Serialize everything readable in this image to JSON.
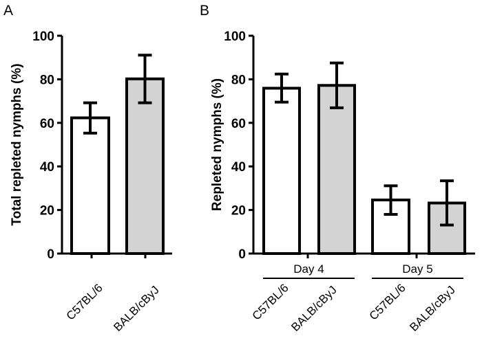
{
  "chart_data": [
    {
      "type": "bar",
      "panel_label": "A",
      "ylabel": "Total repleted nymphs (%)",
      "ylim": [
        0,
        100
      ],
      "yticks": [
        "0",
        "20",
        "40",
        "60",
        "80",
        "100"
      ],
      "categories": [
        "C57BL/6",
        "BALB/cByJ"
      ],
      "values": [
        62.3,
        80.2
      ],
      "error_upper": [
        69.2,
        91.1
      ],
      "error_lower": [
        55.3,
        69.2
      ],
      "bar_colors": [
        "#ffffff",
        "#d3d3d3"
      ],
      "grid": false
    },
    {
      "type": "bar",
      "panel_label": "B",
      "ylabel": "Repleted nymphs (%)",
      "ylim": [
        0,
        100
      ],
      "yticks": [
        "0",
        "20",
        "40",
        "60",
        "80",
        "100"
      ],
      "groups": [
        "Day 4",
        "Day 5"
      ],
      "categories": [
        "C57BL/6",
        "BALB/cByJ",
        "C57BL/6",
        "BALB/cByJ"
      ],
      "values": [
        75.9,
        77.2,
        24.6,
        23.2
      ],
      "error_upper": [
        82.4,
        87.5,
        31.1,
        33.4
      ],
      "error_lower": [
        69.5,
        66.9,
        18.0,
        13.1
      ],
      "bar_colors": [
        "#ffffff",
        "#d3d3d3",
        "#ffffff",
        "#d3d3d3"
      ],
      "grid": false
    }
  ]
}
